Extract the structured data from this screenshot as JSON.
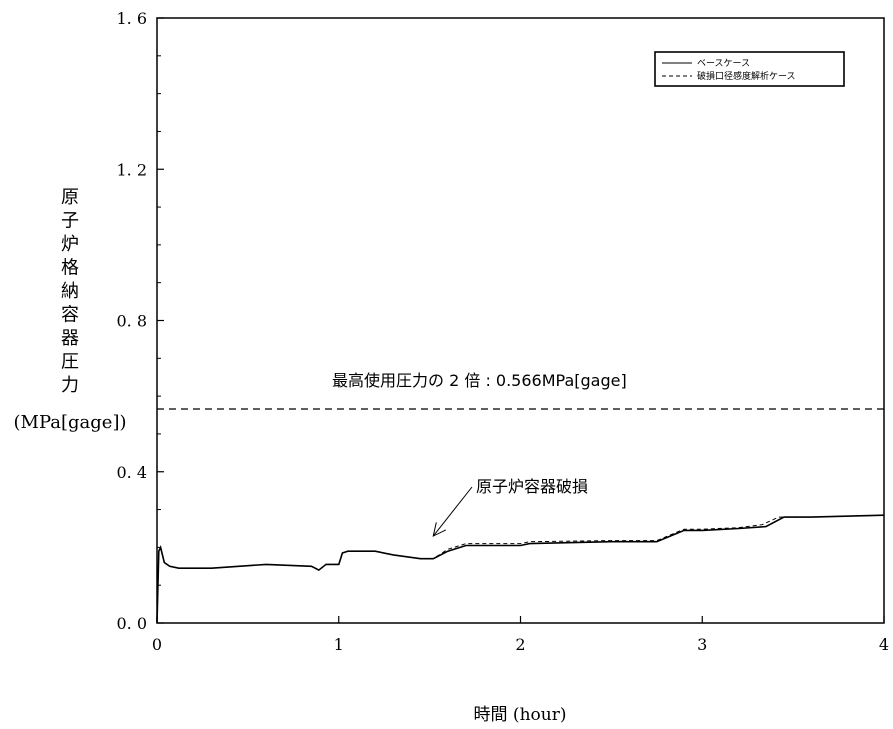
{
  "chart_data": {
    "type": "line",
    "xlabel": "時間 (hour)",
    "ylabel_chars": [
      "原",
      "子",
      "炉",
      "格",
      "納",
      "容",
      "器",
      "圧",
      "力"
    ],
    "ylabel_unit": "(MPa[gage])",
    "xlim": [
      0,
      4
    ],
    "ylim": [
      0,
      1.6
    ],
    "x_ticks": [
      "0",
      "1",
      "2",
      "3",
      "4"
    ],
    "y_ticks": [
      "0. 0",
      "0. 4",
      "0. 8",
      "1. 2",
      "1. 6"
    ],
    "grid": false,
    "legend_position": "top-right",
    "reference_line": {
      "y": 0.566,
      "label": "最高使用圧力の 2 倍 : 0.566MPa[gage]"
    },
    "annotation": {
      "text": "原子炉容器破損",
      "x": 1.52,
      "y": 0.23
    },
    "series": [
      {
        "name": "ベースケース",
        "style": "solid",
        "x": [
          0,
          0.01,
          0.02,
          0.04,
          0.07,
          0.12,
          0.3,
          0.6,
          0.85,
          0.89,
          0.93,
          1.0,
          1.02,
          1.05,
          1.1,
          1.2,
          1.3,
          1.45,
          1.52,
          1.6,
          1.7,
          1.9,
          2.0,
          2.05,
          2.5,
          2.75,
          2.85,
          2.9,
          3.0,
          3.2,
          3.35,
          3.45,
          3.6,
          4.0
        ],
        "y": [
          0.0,
          0.19,
          0.2,
          0.16,
          0.15,
          0.145,
          0.145,
          0.155,
          0.15,
          0.14,
          0.155,
          0.155,
          0.185,
          0.19,
          0.19,
          0.19,
          0.18,
          0.17,
          0.17,
          0.19,
          0.205,
          0.205,
          0.205,
          0.21,
          0.215,
          0.215,
          0.235,
          0.245,
          0.245,
          0.25,
          0.255,
          0.28,
          0.28,
          0.285
        ]
      },
      {
        "name": "破損口径感度解析ケース",
        "style": "dashed",
        "x": [
          0,
          0.01,
          0.02,
          0.04,
          0.07,
          0.12,
          0.3,
          0.6,
          0.85,
          0.89,
          0.93,
          1.0,
          1.02,
          1.05,
          1.1,
          1.2,
          1.3,
          1.45,
          1.52,
          1.6,
          1.7,
          1.9,
          2.0,
          2.05,
          2.5,
          2.75,
          2.85,
          2.9,
          3.0,
          3.2,
          3.33,
          3.42,
          3.6,
          4.0
        ],
        "y": [
          0.0,
          0.19,
          0.2,
          0.16,
          0.15,
          0.145,
          0.145,
          0.155,
          0.15,
          0.14,
          0.155,
          0.155,
          0.185,
          0.19,
          0.19,
          0.19,
          0.18,
          0.17,
          0.17,
          0.195,
          0.21,
          0.21,
          0.21,
          0.215,
          0.218,
          0.218,
          0.238,
          0.248,
          0.248,
          0.252,
          0.26,
          0.28,
          0.28,
          0.285
        ]
      }
    ]
  }
}
